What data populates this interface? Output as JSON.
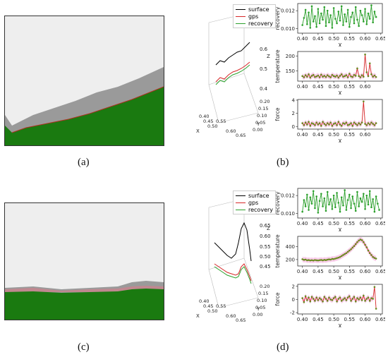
{
  "captions": {
    "a": "(a)",
    "b": "(b)",
    "c": "(c)",
    "d": "(d)"
  },
  "colors": {
    "surface": "#000000",
    "gps": "#d62728",
    "recovery": "#2ca02c",
    "green_fill": "#1a7a10",
    "gray_fill": "#999999",
    "bg_gray": "#eeeeee",
    "pink_band": "#f8c8e8"
  },
  "legend": {
    "surface": "surface",
    "gps": "gps",
    "recovery": "recovery"
  },
  "chart_data": [
    {
      "panel": "b-3d",
      "type": "line",
      "legend": [
        "surface",
        "gps",
        "recovery"
      ],
      "xlabel": "X",
      "ylabel": "Y",
      "zlabel": "Z",
      "xticks": [
        "0.40",
        "0.45",
        "0.50",
        "0.55",
        "0.60",
        "0.65"
      ],
      "yticks": [
        "0.00",
        "0.05",
        "0.10",
        "0.15",
        "0.20"
      ],
      "zticks": [
        "0.4",
        "0.5",
        "0.6"
      ]
    },
    {
      "panel": "b-recovery",
      "type": "line",
      "ylabel": "recovery",
      "xlabel": "X",
      "xlim": [
        0.385,
        0.655
      ],
      "ylim": [
        0.0095,
        0.0128
      ],
      "xticks": [
        "0.40",
        "0.45",
        "0.50",
        "0.55",
        "0.60",
        "0.65"
      ],
      "yticks": [
        "0.010",
        "0.012"
      ],
      "x": [
        0.4,
        0.405,
        0.41,
        0.415,
        0.42,
        0.425,
        0.43,
        0.435,
        0.44,
        0.445,
        0.45,
        0.455,
        0.46,
        0.465,
        0.47,
        0.475,
        0.48,
        0.485,
        0.49,
        0.495,
        0.5,
        0.505,
        0.51,
        0.515,
        0.52,
        0.525,
        0.53,
        0.535,
        0.54,
        0.545,
        0.55,
        0.555,
        0.56,
        0.565,
        0.57,
        0.575,
        0.58,
        0.585,
        0.59,
        0.595,
        0.6,
        0.605,
        0.61,
        0.615,
        0.62,
        0.625,
        0.63,
        0.635
      ],
      "values": [
        0.0104,
        0.0112,
        0.0121,
        0.0105,
        0.0118,
        0.0101,
        0.0125,
        0.0108,
        0.0114,
        0.0102,
        0.0122,
        0.0106,
        0.0117,
        0.011,
        0.0124,
        0.0103,
        0.012,
        0.0107,
        0.0115,
        0.0101,
        0.0123,
        0.0111,
        0.0106,
        0.0119,
        0.0109,
        0.0125,
        0.0104,
        0.0116,
        0.0108,
        0.0121,
        0.0102,
        0.0113,
        0.0118,
        0.0106,
        0.0124,
        0.011,
        0.0103,
        0.012,
        0.0115,
        0.0108,
        0.0122,
        0.0105,
        0.0117,
        0.0111,
        0.0126,
        0.0107,
        0.0119,
        0.0113
      ]
    },
    {
      "panel": "b-temperature",
      "type": "line",
      "ylabel": "temperature",
      "xlabel": "X",
      "xlim": [
        0.385,
        0.655
      ],
      "ylim": [
        115,
        215
      ],
      "xticks": [
        "0.40",
        "0.45",
        "0.50",
        "0.55",
        "0.60"
      ],
      "yticks": [
        "150",
        "200"
      ],
      "x": [
        0.4,
        0.405,
        0.41,
        0.415,
        0.42,
        0.425,
        0.43,
        0.435,
        0.44,
        0.445,
        0.45,
        0.455,
        0.46,
        0.465,
        0.47,
        0.475,
        0.48,
        0.485,
        0.49,
        0.495,
        0.5,
        0.505,
        0.51,
        0.515,
        0.52,
        0.525,
        0.53,
        0.535,
        0.54,
        0.545,
        0.55,
        0.555,
        0.56,
        0.565,
        0.57,
        0.575,
        0.58,
        0.585,
        0.59,
        0.595,
        0.6,
        0.605,
        0.61,
        0.615,
        0.62,
        0.625,
        0.63,
        0.635
      ],
      "values": [
        132,
        128,
        135,
        130,
        138,
        127,
        133,
        136,
        129,
        131,
        134,
        128,
        137,
        130,
        133,
        129,
        135,
        131,
        128,
        136,
        132,
        130,
        134,
        127,
        133,
        138,
        130,
        132,
        135,
        128,
        140,
        131,
        129,
        136,
        133,
        158,
        132,
        128,
        135,
        130,
        205,
        145,
        132,
        175,
        138,
        130,
        134,
        129
      ]
    },
    {
      "panel": "b-force",
      "type": "line",
      "ylabel": "force",
      "xlabel": "X",
      "xlim": [
        0.385,
        0.655
      ],
      "ylim": [
        -0.4,
        4.1
      ],
      "xticks": [
        "0.40",
        "0.45",
        "0.50",
        "0.55",
        "0.60"
      ],
      "yticks": [
        "0",
        "2",
        "4"
      ],
      "x": [
        0.4,
        0.405,
        0.41,
        0.415,
        0.42,
        0.425,
        0.43,
        0.435,
        0.44,
        0.445,
        0.45,
        0.455,
        0.46,
        0.465,
        0.47,
        0.475,
        0.48,
        0.485,
        0.49,
        0.495,
        0.5,
        0.505,
        0.51,
        0.515,
        0.52,
        0.525,
        0.53,
        0.535,
        0.54,
        0.545,
        0.55,
        0.555,
        0.56,
        0.565,
        0.57,
        0.575,
        0.58,
        0.585,
        0.59,
        0.595,
        0.6,
        0.605,
        0.61,
        0.615,
        0.62,
        0.625,
        0.63,
        0.635
      ],
      "values": [
        0.5,
        0.2,
        0.6,
        0.3,
        0.7,
        0.1,
        0.5,
        0.4,
        0.2,
        0.6,
        0.3,
        0.5,
        0.1,
        0.7,
        0.4,
        0.2,
        0.5,
        0.3,
        0.6,
        0.1,
        0.4,
        0.5,
        0.2,
        0.7,
        0.3,
        0.1,
        0.5,
        0.4,
        0.6,
        0.2,
        0.3,
        0.5,
        0.1,
        0.6,
        0.4,
        0.2,
        0.5,
        0.3,
        0.6,
        3.8,
        0.4,
        0.2,
        0.5,
        0.3,
        0.6,
        0.4,
        0.2,
        0.5
      ]
    },
    {
      "panel": "d-3d",
      "type": "line",
      "legend": [
        "surface",
        "gps",
        "recovery"
      ],
      "xlabel": "X",
      "ylabel": "Y",
      "zlabel": "Z",
      "xticks": [
        "0.40",
        "0.45",
        "0.50",
        "0.55",
        "0.60",
        "0.65"
      ],
      "yticks": [
        "0.00",
        "0.05",
        "0.10",
        "0.15",
        "0.20"
      ],
      "zticks": [
        "0.45",
        "0.50",
        "0.55",
        "0.60",
        "0.65"
      ]
    },
    {
      "panel": "d-recovery",
      "type": "line",
      "ylabel": "recovery",
      "xlabel": "X",
      "xlim": [
        0.385,
        0.655
      ],
      "ylim": [
        0.0095,
        0.0128
      ],
      "xticks": [
        "0.40",
        "0.45",
        "0.50",
        "0.55",
        "0.60",
        "0.65"
      ],
      "yticks": [
        "0.010",
        "0.012"
      ],
      "x": [
        0.4,
        0.405,
        0.41,
        0.415,
        0.42,
        0.425,
        0.43,
        0.435,
        0.44,
        0.445,
        0.45,
        0.455,
        0.46,
        0.465,
        0.47,
        0.475,
        0.48,
        0.485,
        0.49,
        0.495,
        0.5,
        0.505,
        0.51,
        0.515,
        0.52,
        0.525,
        0.53,
        0.535,
        0.54,
        0.545,
        0.55,
        0.555,
        0.56,
        0.565,
        0.57,
        0.575,
        0.58,
        0.585,
        0.59,
        0.595,
        0.6,
        0.605,
        0.61,
        0.615,
        0.62,
        0.625,
        0.63,
        0.635,
        0.64,
        0.645
      ],
      "values": [
        0.0102,
        0.0115,
        0.0108,
        0.0121,
        0.0104,
        0.0118,
        0.0111,
        0.0125,
        0.0106,
        0.0119,
        0.0101,
        0.0114,
        0.0122,
        0.0108,
        0.0117,
        0.0103,
        0.0124,
        0.011,
        0.0116,
        0.0105,
        0.012,
        0.0107,
        0.0123,
        0.0112,
        0.0102,
        0.0118,
        0.0109,
        0.0126,
        0.0104,
        0.0115,
        0.0121,
        0.0106,
        0.0119,
        0.0111,
        0.0103,
        0.0124,
        0.0108,
        0.0117,
        0.0113,
        0.0122,
        0.0105,
        0.012,
        0.011,
        0.0125,
        0.0107,
        0.0116,
        0.0102,
        0.0119,
        0.0111,
        0.0104
      ]
    },
    {
      "panel": "d-temperature",
      "type": "line",
      "ylabel": "temperature",
      "xlabel": "X",
      "xlim": [
        0.385,
        0.655
      ],
      "ylim": [
        100,
        560
      ],
      "xticks": [
        "0.40",
        "0.45",
        "0.50",
        "0.55",
        "0.60",
        "0.65"
      ],
      "yticks": [
        "200",
        "400"
      ],
      "x": [
        0.4,
        0.405,
        0.41,
        0.415,
        0.42,
        0.425,
        0.43,
        0.435,
        0.44,
        0.445,
        0.45,
        0.455,
        0.46,
        0.465,
        0.47,
        0.475,
        0.48,
        0.485,
        0.49,
        0.495,
        0.5,
        0.505,
        0.51,
        0.515,
        0.52,
        0.525,
        0.53,
        0.535,
        0.54,
        0.545,
        0.55,
        0.555,
        0.56,
        0.565,
        0.57,
        0.575,
        0.58,
        0.585,
        0.59,
        0.595,
        0.6,
        0.605,
        0.61,
        0.615,
        0.62,
        0.625,
        0.63,
        0.635
      ],
      "values": [
        205,
        195,
        200,
        188,
        192,
        186,
        190,
        185,
        193,
        188,
        186,
        190,
        194,
        187,
        195,
        191,
        198,
        203,
        200,
        210,
        208,
        215,
        222,
        230,
        240,
        255,
        270,
        285,
        300,
        320,
        340,
        360,
        385,
        410,
        440,
        470,
        495,
        510,
        500,
        470,
        430,
        390,
        340,
        300,
        270,
        240,
        225,
        215
      ]
    },
    {
      "panel": "d-force",
      "type": "line",
      "ylabel": "force",
      "xlabel": "X",
      "xlim": [
        0.385,
        0.655
      ],
      "ylim": [
        -2.2,
        2.3
      ],
      "xticks": [
        "0.40",
        "0.45",
        "0.50",
        "0.55",
        "0.60",
        "0.65"
      ],
      "yticks": [
        "-2",
        "0",
        "2"
      ],
      "x": [
        0.4,
        0.405,
        0.41,
        0.415,
        0.42,
        0.425,
        0.43,
        0.435,
        0.44,
        0.445,
        0.45,
        0.455,
        0.46,
        0.465,
        0.47,
        0.475,
        0.48,
        0.485,
        0.49,
        0.495,
        0.5,
        0.505,
        0.51,
        0.515,
        0.52,
        0.525,
        0.53,
        0.535,
        0.54,
        0.545,
        0.55,
        0.555,
        0.56,
        0.565,
        0.57,
        0.575,
        0.58,
        0.585,
        0.59,
        0.595,
        0.6,
        0.605,
        0.61,
        0.615,
        0.62,
        0.625,
        0.63,
        0.635
      ],
      "values": [
        0.2,
        -0.4,
        0.5,
        -0.1,
        0.3,
        -0.3,
        0.4,
        0.1,
        -0.2,
        0.3,
        -0.1,
        0.2,
        0.0,
        -0.3,
        0.4,
        0.1,
        -0.2,
        0.3,
        0.0,
        -0.1,
        0.2,
        0.4,
        -0.3,
        0.1,
        0.3,
        -0.2,
        0.0,
        0.2,
        -0.1,
        0.3,
        0.5,
        -0.2,
        0.1,
        0.4,
        -0.3,
        0.2,
        0.0,
        0.3,
        -0.1,
        0.6,
        -0.2,
        0.1,
        0.3,
        -0.2,
        0.2,
        0.1,
        1.9,
        -1.4
      ]
    }
  ]
}
